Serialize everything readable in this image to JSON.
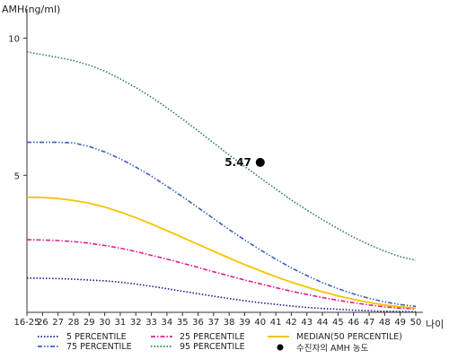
{
  "chart_data": {
    "type": "line",
    "ylabel": "AMH(ng/ml)",
    "xlabel": "나이",
    "x": [
      "16-25",
      "26",
      "27",
      "28",
      "29",
      "30",
      "31",
      "32",
      "33",
      "34",
      "35",
      "36",
      "37",
      "38",
      "39",
      "40",
      "41",
      "42",
      "43",
      "44",
      "45",
      "46",
      "47",
      "48",
      "49",
      "50"
    ],
    "ylim": [
      0,
      11
    ],
    "yticks": [
      "5",
      "10"
    ],
    "grid": false,
    "legend_position": "bottom",
    "series": [
      {
        "name": "5 PERCENTILE",
        "color": "#1a1a8c",
        "style": "dotted",
        "values": [
          1.25,
          1.24,
          1.23,
          1.21,
          1.18,
          1.15,
          1.1,
          1.03,
          0.95,
          0.86,
          0.77,
          0.68,
          0.59,
          0.5,
          0.42,
          0.35,
          0.29,
          0.23,
          0.18,
          0.14,
          0.11,
          0.08,
          0.06,
          0.04,
          0.03,
          0.02
        ]
      },
      {
        "name": "25 PERCENTILE",
        "color": "#e0208f",
        "style": "dashdot",
        "values": [
          2.65,
          2.64,
          2.62,
          2.58,
          2.52,
          2.44,
          2.34,
          2.22,
          2.08,
          1.94,
          1.79,
          1.64,
          1.48,
          1.33,
          1.18,
          1.04,
          0.9,
          0.77,
          0.65,
          0.54,
          0.44,
          0.35,
          0.27,
          0.2,
          0.15,
          0.12
        ]
      },
      {
        "name": "MEDIAN(50 PERCENTILE)",
        "color": "#f5c400",
        "style": "solid",
        "values": [
          4.2,
          4.19,
          4.15,
          4.08,
          3.98,
          3.84,
          3.66,
          3.45,
          3.22,
          2.98,
          2.73,
          2.48,
          2.23,
          1.98,
          1.74,
          1.52,
          1.3,
          1.1,
          0.92,
          0.75,
          0.6,
          0.47,
          0.36,
          0.27,
          0.2,
          0.16
        ]
      },
      {
        "name": "75 PERCENTILE",
        "color": "#3b5fc0",
        "style": "dashdotdot",
        "values": [
          6.2,
          6.2,
          6.2,
          6.18,
          6.05,
          5.85,
          5.6,
          5.3,
          4.97,
          4.6,
          4.22,
          3.82,
          3.42,
          3.02,
          2.64,
          2.28,
          1.94,
          1.62,
          1.34,
          1.08,
          0.86,
          0.67,
          0.51,
          0.38,
          0.28,
          0.22
        ]
      },
      {
        "name": "95 PERCENTILE",
        "color": "#2e7d4f",
        "style": "dotted",
        "values": [
          9.5,
          9.4,
          9.3,
          9.18,
          9.02,
          8.8,
          8.52,
          8.2,
          7.85,
          7.46,
          7.05,
          6.62,
          6.18,
          5.74,
          5.32,
          4.9,
          4.5,
          4.1,
          3.73,
          3.38,
          3.05,
          2.74,
          2.47,
          2.23,
          2.03,
          1.9
        ]
      }
    ],
    "marker": {
      "name": "수진자의 AMH 농도",
      "x": "40",
      "value": 5.47,
      "label": "5.47",
      "color": "#000000"
    }
  }
}
